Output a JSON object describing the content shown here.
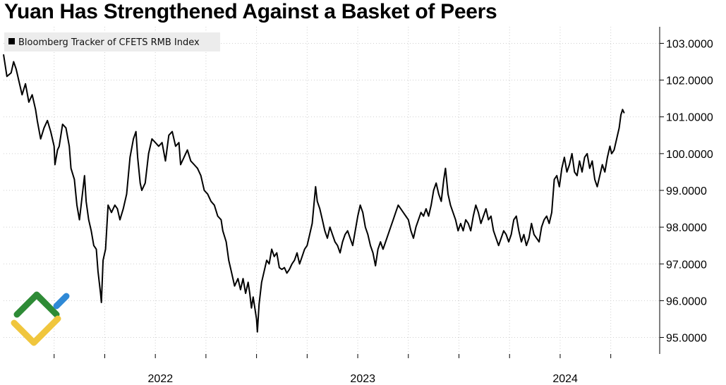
{
  "chart_data": {
    "type": "line",
    "title": "Yuan Has Strengthened Against a Basket of Peers",
    "legend": {
      "label": "Bloomberg Tracker of CFETS RMB Index",
      "position": "top-left"
    },
    "xlabel": "",
    "ylabel": "",
    "x_tick_labels": [
      "2022",
      "2023",
      "2024"
    ],
    "y_ticks": [
      "95.0000",
      "96.0000",
      "97.0000",
      "98.0000",
      "99.0000",
      "100.0000",
      "101.0000",
      "102.0000",
      "103.0000"
    ],
    "ylim": [
      94.55,
      103.45
    ],
    "x_unit": "months since 2021-10-01",
    "xlim": [
      0,
      38.9
    ],
    "y_axis_side": "right",
    "grid": true,
    "series": [
      {
        "name": "Bloomberg Tracker of CFETS RMB Index",
        "color": "#000000",
        "points": [
          [
            0.0,
            102.7
          ],
          [
            0.2,
            102.1
          ],
          [
            0.45,
            102.2
          ],
          [
            0.6,
            102.5
          ],
          [
            0.75,
            102.3
          ],
          [
            0.9,
            102.0
          ],
          [
            1.1,
            101.6
          ],
          [
            1.3,
            101.9
          ],
          [
            1.5,
            101.4
          ],
          [
            1.7,
            101.6
          ],
          [
            1.9,
            101.2
          ],
          [
            2.0,
            100.9
          ],
          [
            2.2,
            100.4
          ],
          [
            2.4,
            100.7
          ],
          [
            2.6,
            100.9
          ],
          [
            2.8,
            100.6
          ],
          [
            3.0,
            100.2
          ],
          [
            3.05,
            99.7
          ],
          [
            3.2,
            100.1
          ],
          [
            3.3,
            100.2
          ],
          [
            3.5,
            100.8
          ],
          [
            3.7,
            100.7
          ],
          [
            3.9,
            100.2
          ],
          [
            4.0,
            99.6
          ],
          [
            4.2,
            99.3
          ],
          [
            4.35,
            98.6
          ],
          [
            4.5,
            98.2
          ],
          [
            4.65,
            98.8
          ],
          [
            4.8,
            99.4
          ],
          [
            4.9,
            98.7
          ],
          [
            5.05,
            98.2
          ],
          [
            5.2,
            97.9
          ],
          [
            5.35,
            97.5
          ],
          [
            5.5,
            97.4
          ],
          [
            5.6,
            96.8
          ],
          [
            5.75,
            96.2
          ],
          [
            5.8,
            95.95
          ],
          [
            5.9,
            97.1
          ],
          [
            6.05,
            97.4
          ],
          [
            6.2,
            98.6
          ],
          [
            6.4,
            98.4
          ],
          [
            6.6,
            98.6
          ],
          [
            6.75,
            98.5
          ],
          [
            6.9,
            98.2
          ],
          [
            7.1,
            98.5
          ],
          [
            7.3,
            98.9
          ],
          [
            7.5,
            99.9
          ],
          [
            7.7,
            100.4
          ],
          [
            7.85,
            100.6
          ],
          [
            7.95,
            99.9
          ],
          [
            8.1,
            99.2
          ],
          [
            8.2,
            99.0
          ],
          [
            8.4,
            99.2
          ],
          [
            8.6,
            100.0
          ],
          [
            8.8,
            100.4
          ],
          [
            9.0,
            100.3
          ],
          [
            9.2,
            100.2
          ],
          [
            9.4,
            100.3
          ],
          [
            9.6,
            99.8
          ],
          [
            9.8,
            100.5
          ],
          [
            10.0,
            100.6
          ],
          [
            10.2,
            100.2
          ],
          [
            10.4,
            100.3
          ],
          [
            10.5,
            99.7
          ],
          [
            10.7,
            99.9
          ],
          [
            10.9,
            100.1
          ],
          [
            11.1,
            99.8
          ],
          [
            11.3,
            99.7
          ],
          [
            11.5,
            99.6
          ],
          [
            11.7,
            99.4
          ],
          [
            11.9,
            99.0
          ],
          [
            12.1,
            98.9
          ],
          [
            12.3,
            98.7
          ],
          [
            12.5,
            98.6
          ],
          [
            12.7,
            98.3
          ],
          [
            12.9,
            98.2
          ],
          [
            13.0,
            97.9
          ],
          [
            13.2,
            97.6
          ],
          [
            13.35,
            97.1
          ],
          [
            13.5,
            96.8
          ],
          [
            13.7,
            96.4
          ],
          [
            13.9,
            96.6
          ],
          [
            14.05,
            96.3
          ],
          [
            14.2,
            96.6
          ],
          [
            14.35,
            96.2
          ],
          [
            14.5,
            96.5
          ],
          [
            14.6,
            96.2
          ],
          [
            14.7,
            95.8
          ],
          [
            14.8,
            96.1
          ],
          [
            14.9,
            95.8
          ],
          [
            15.0,
            95.5
          ],
          [
            15.05,
            95.15
          ],
          [
            15.15,
            95.9
          ],
          [
            15.3,
            96.5
          ],
          [
            15.45,
            96.8
          ],
          [
            15.6,
            97.1
          ],
          [
            15.75,
            97.0
          ],
          [
            15.9,
            97.4
          ],
          [
            16.05,
            97.2
          ],
          [
            16.2,
            97.3
          ],
          [
            16.35,
            96.9
          ],
          [
            16.5,
            96.85
          ],
          [
            16.65,
            96.9
          ],
          [
            16.8,
            96.75
          ],
          [
            16.95,
            96.85
          ],
          [
            17.1,
            97.0
          ],
          [
            17.25,
            97.1
          ],
          [
            17.4,
            97.3
          ],
          [
            17.55,
            97.0
          ],
          [
            17.7,
            97.2
          ],
          [
            17.85,
            97.4
          ],
          [
            18.0,
            97.5
          ],
          [
            18.15,
            97.8
          ],
          [
            18.3,
            98.1
          ],
          [
            18.4,
            98.6
          ],
          [
            18.5,
            99.1
          ],
          [
            18.6,
            98.7
          ],
          [
            18.75,
            98.5
          ],
          [
            18.9,
            98.2
          ],
          [
            19.05,
            97.9
          ],
          [
            19.2,
            97.7
          ],
          [
            19.35,
            98.0
          ],
          [
            19.5,
            97.8
          ],
          [
            19.65,
            97.6
          ],
          [
            19.8,
            97.5
          ],
          [
            19.95,
            97.3
          ],
          [
            20.1,
            97.6
          ],
          [
            20.25,
            97.8
          ],
          [
            20.4,
            97.9
          ],
          [
            20.55,
            97.7
          ],
          [
            20.7,
            97.5
          ],
          [
            20.85,
            97.9
          ],
          [
            21.0,
            98.3
          ],
          [
            21.15,
            98.6
          ],
          [
            21.3,
            98.4
          ],
          [
            21.45,
            98.0
          ],
          [
            21.6,
            97.8
          ],
          [
            21.75,
            97.5
          ],
          [
            21.9,
            97.3
          ],
          [
            22.05,
            96.95
          ],
          [
            22.2,
            97.4
          ],
          [
            22.35,
            97.6
          ],
          [
            22.5,
            97.4
          ],
          [
            22.65,
            97.6
          ],
          [
            22.8,
            97.8
          ],
          [
            22.95,
            98.0
          ],
          [
            23.1,
            98.2
          ],
          [
            23.25,
            98.4
          ],
          [
            23.4,
            98.6
          ],
          [
            23.55,
            98.5
          ],
          [
            23.7,
            98.4
          ],
          [
            23.85,
            98.3
          ],
          [
            24.0,
            98.2
          ],
          [
            24.15,
            97.9
          ],
          [
            24.3,
            97.7
          ],
          [
            24.45,
            98.0
          ],
          [
            24.6,
            98.2
          ],
          [
            24.75,
            98.4
          ],
          [
            24.9,
            98.3
          ],
          [
            25.05,
            98.5
          ],
          [
            25.2,
            98.3
          ],
          [
            25.35,
            98.6
          ],
          [
            25.5,
            99.0
          ],
          [
            25.65,
            99.2
          ],
          [
            25.8,
            98.9
          ],
          [
            25.95,
            98.7
          ],
          [
            26.1,
            99.3
          ],
          [
            26.2,
            99.6
          ],
          [
            26.35,
            98.9
          ],
          [
            26.5,
            98.6
          ],
          [
            26.65,
            98.4
          ],
          [
            26.8,
            98.2
          ],
          [
            26.95,
            97.9
          ],
          [
            27.1,
            98.1
          ],
          [
            27.25,
            97.9
          ],
          [
            27.4,
            98.2
          ],
          [
            27.55,
            98.1
          ],
          [
            27.7,
            97.9
          ],
          [
            27.85,
            98.3
          ],
          [
            28.0,
            98.6
          ],
          [
            28.15,
            98.4
          ],
          [
            28.3,
            98.1
          ],
          [
            28.45,
            98.3
          ],
          [
            28.6,
            98.5
          ],
          [
            28.75,
            98.2
          ],
          [
            28.9,
            98.3
          ],
          [
            29.05,
            97.9
          ],
          [
            29.2,
            97.7
          ],
          [
            29.35,
            97.5
          ],
          [
            29.5,
            97.7
          ],
          [
            29.65,
            97.9
          ],
          [
            29.8,
            97.8
          ],
          [
            29.95,
            97.6
          ],
          [
            30.1,
            97.8
          ],
          [
            30.25,
            98.2
          ],
          [
            30.4,
            98.3
          ],
          [
            30.55,
            97.9
          ],
          [
            30.7,
            97.6
          ],
          [
            30.85,
            97.8
          ],
          [
            31.0,
            97.5
          ],
          [
            31.15,
            97.7
          ],
          [
            31.3,
            98.1
          ],
          [
            31.45,
            97.8
          ],
          [
            31.6,
            97.7
          ],
          [
            31.75,
            97.6
          ],
          [
            31.9,
            98.0
          ],
          [
            32.05,
            98.2
          ],
          [
            32.2,
            98.3
          ],
          [
            32.35,
            98.1
          ],
          [
            32.5,
            98.4
          ],
          [
            32.65,
            99.3
          ],
          [
            32.8,
            99.4
          ],
          [
            32.95,
            99.1
          ],
          [
            33.1,
            99.6
          ],
          [
            33.25,
            99.9
          ],
          [
            33.4,
            99.5
          ],
          [
            33.55,
            99.7
          ],
          [
            33.7,
            100.0
          ],
          [
            33.85,
            99.5
          ],
          [
            34.0,
            99.4
          ],
          [
            34.15,
            99.8
          ],
          [
            34.3,
            99.5
          ],
          [
            34.45,
            99.9
          ],
          [
            34.6,
            100.0
          ],
          [
            34.75,
            99.6
          ],
          [
            34.9,
            99.8
          ],
          [
            35.05,
            99.3
          ],
          [
            35.2,
            99.1
          ],
          [
            35.35,
            99.4
          ],
          [
            35.5,
            99.7
          ],
          [
            35.65,
            99.5
          ],
          [
            35.8,
            99.9
          ],
          [
            35.95,
            100.2
          ],
          [
            36.05,
            100.0
          ],
          [
            36.2,
            100.1
          ],
          [
            36.35,
            100.4
          ],
          [
            36.5,
            100.7
          ],
          [
            36.6,
            101.05
          ],
          [
            36.7,
            101.2
          ],
          [
            36.8,
            101.1
          ]
        ]
      }
    ]
  }
}
